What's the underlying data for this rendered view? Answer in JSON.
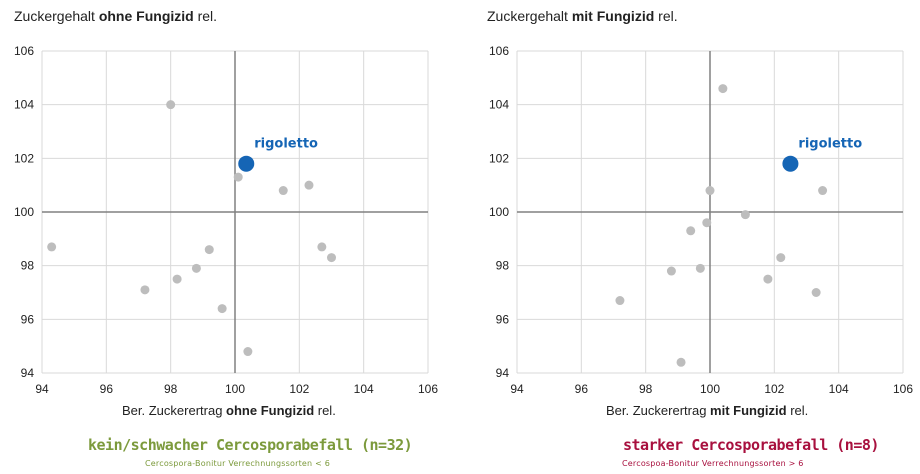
{
  "charts": [
    {
      "title_prefix": "Zuckergehalt ",
      "title_bold": "ohne Fungizid",
      "title_suffix": " rel.",
      "xlabel_prefix": "Ber. Zuckerertrag ",
      "xlabel_bold": "ohne Fungizid",
      "xlabel_suffix": " rel.",
      "heading": "kein/schwacher Cercosporabefall (n=32)",
      "subheading": "Cercospora-Bonitur Verrechnungssorten < 6"
    },
    {
      "title_prefix": "Zuckergehalt ",
      "title_bold": "mit Fungizid",
      "title_suffix": " rel.",
      "xlabel_prefix": "Ber. Zuckerertrag ",
      "xlabel_bold": "mit Fungizid",
      "xlabel_suffix": " rel.",
      "heading": "starker Cercosporabefall (n=8)",
      "subheading": "Cercospoa-Bonitur Verrechnungssorten > 6"
    }
  ],
  "colors": {
    "left_heading": "#7c9a3c",
    "right_heading": "#a8103e",
    "highlight": "#1565b5",
    "points": "#bdbdbd",
    "grid": "#d9d9d9",
    "axis": "#808080"
  },
  "chart_data": [
    {
      "type": "scatter",
      "title": "Zuckergehalt ohne Fungizid rel.",
      "xlabel": "Ber. Zuckerertrag ohne Fungizid rel.",
      "ylabel": "",
      "xlim": [
        94,
        106
      ],
      "ylim": [
        94,
        106
      ],
      "xticks": [
        94,
        96,
        98,
        100,
        102,
        104,
        106
      ],
      "yticks": [
        94,
        96,
        98,
        100,
        102,
        104,
        106
      ],
      "grid": true,
      "crosshair": [
        100,
        100
      ],
      "series": [
        {
          "values": [
            [
              94.3,
              98.7
            ],
            [
              97.2,
              97.1
            ],
            [
              98.0,
              104.0
            ],
            [
              98.2,
              97.5
            ],
            [
              98.8,
              97.9
            ],
            [
              99.2,
              98.6
            ],
            [
              99.6,
              96.4
            ],
            [
              100.1,
              101.3
            ],
            [
              100.4,
              94.8
            ],
            [
              101.5,
              100.8
            ],
            [
              102.3,
              101.0
            ],
            [
              102.7,
              98.7
            ],
            [
              103.0,
              98.3
            ]
          ]
        },
        {
          "name": "rigoletto",
          "values": [
            [
              100.35,
              101.8
            ]
          ]
        }
      ]
    },
    {
      "type": "scatter",
      "title": "Zuckergehalt mit Fungizid rel.",
      "xlabel": "Ber. Zuckerertrag mit Fungizid rel.",
      "ylabel": "",
      "xlim": [
        94,
        106
      ],
      "ylim": [
        94,
        106
      ],
      "xticks": [
        94,
        96,
        98,
        100,
        102,
        104,
        106
      ],
      "yticks": [
        94,
        96,
        98,
        100,
        102,
        104,
        106
      ],
      "grid": true,
      "crosshair": [
        100,
        100
      ],
      "series": [
        {
          "values": [
            [
              97.2,
              96.7
            ],
            [
              98.8,
              97.8
            ],
            [
              99.1,
              94.4
            ],
            [
              99.4,
              99.3
            ],
            [
              99.7,
              97.9
            ],
            [
              99.9,
              99.6
            ],
            [
              100.0,
              100.8
            ],
            [
              100.4,
              104.6
            ],
            [
              101.1,
              99.9
            ],
            [
              101.8,
              97.5
            ],
            [
              102.2,
              98.3
            ],
            [
              103.3,
              97.0
            ],
            [
              103.5,
              100.8
            ]
          ]
        },
        {
          "name": "rigoletto",
          "values": [
            [
              102.5,
              101.8
            ]
          ]
        }
      ]
    }
  ]
}
